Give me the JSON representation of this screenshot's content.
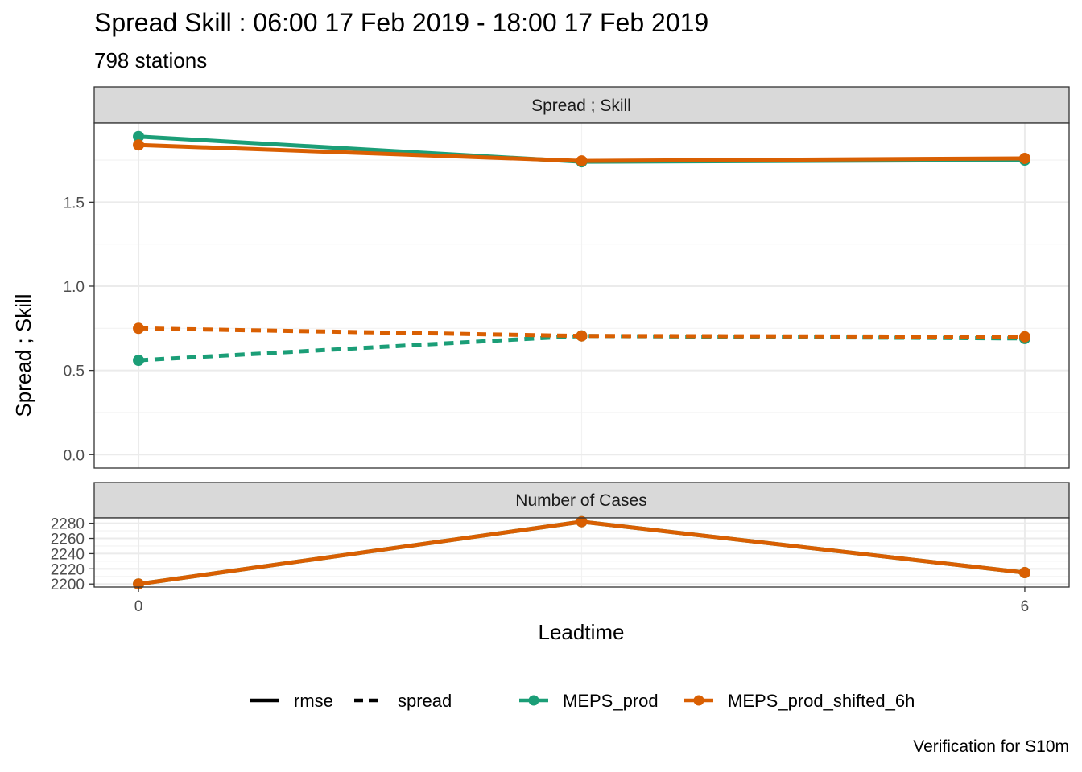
{
  "title": "Spread Skill : 06:00 17 Feb 2019 - 18:00 17 Feb 2019",
  "subtitle": "798 stations",
  "caption": "Verification for S10m",
  "colors": {
    "MEPS_prod": "#1b9e77",
    "MEPS_prod_shifted_6h": "#d95f02"
  },
  "chart_data": [
    {
      "type": "line",
      "panel": "Spread ; Skill",
      "ylabel": "Spread ; Skill",
      "xlabel": "Leadtime",
      "x": [
        0,
        3,
        6
      ],
      "x_ticks": [
        0,
        6
      ],
      "y_ticks": [
        0.0,
        0.5,
        1.0,
        1.5
      ],
      "y_tick_labels": [
        "0.0",
        "0.5",
        "1.0",
        "1.5"
      ],
      "ylim": [
        -0.08,
        1.97
      ],
      "xlim": [
        -0.3,
        6.3
      ],
      "series": [
        {
          "name": "MEPS_prod",
          "linetype": "rmse",
          "values": [
            1.89,
            1.74,
            1.75
          ]
        },
        {
          "name": "MEPS_prod_shifted_6h",
          "linetype": "rmse",
          "values": [
            1.84,
            1.745,
            1.76
          ]
        },
        {
          "name": "MEPS_prod",
          "linetype": "spread",
          "values": [
            0.56,
            0.705,
            0.69
          ]
        },
        {
          "name": "MEPS_prod_shifted_6h",
          "linetype": "spread",
          "values": [
            0.75,
            0.705,
            0.7
          ]
        }
      ]
    },
    {
      "type": "line",
      "panel": "Number of Cases",
      "xlabel": "Leadtime",
      "x": [
        0,
        3,
        6
      ],
      "x_ticks": [
        0,
        6
      ],
      "x_tick_labels": [
        "0",
        "6"
      ],
      "y_ticks": [
        2200,
        2220,
        2240,
        2260,
        2280
      ],
      "y_tick_labels": [
        "2200",
        "2220",
        "2240",
        "2260",
        "2280"
      ],
      "ylim": [
        2196,
        2287
      ],
      "xlim": [
        -0.3,
        6.3
      ],
      "series": [
        {
          "name": "MEPS_prod",
          "values": [
            2200,
            2282,
            2215
          ]
        },
        {
          "name": "MEPS_prod_shifted_6h",
          "values": [
            2200,
            2282,
            2215
          ]
        }
      ]
    }
  ],
  "legend": {
    "placement": "bottom",
    "linetypes": [
      "rmse",
      "spread"
    ],
    "models": [
      "MEPS_prod",
      "MEPS_prod_shifted_6h"
    ]
  }
}
